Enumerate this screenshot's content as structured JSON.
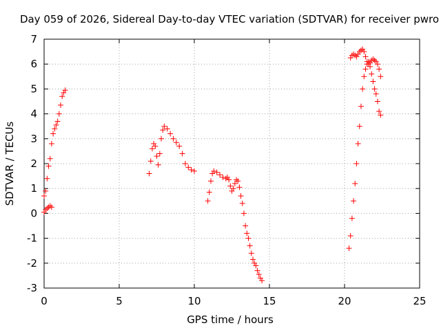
{
  "chart_data": {
    "type": "scatter",
    "title": "Day 059 of 2026, Sidereal Day-to-day VTEC variation (SDTVAR) for receiver pwro",
    "xlabel": "GPS time / hours",
    "ylabel": "SDTVAR / TECUs",
    "xlim": [
      0,
      25
    ],
    "ylim": [
      -3,
      7
    ],
    "xticks": [
      0,
      5,
      10,
      15,
      20,
      25
    ],
    "yticks": [
      -3,
      -2,
      -1,
      0,
      1,
      2,
      3,
      4,
      5,
      6,
      7
    ],
    "grid": true,
    "marker": "+",
    "color": "#ff0000",
    "series": [
      {
        "values": [
          [
            0.0,
            0.05
          ],
          [
            0.1,
            0.15
          ],
          [
            0.2,
            0.2
          ],
          [
            0.3,
            0.25
          ],
          [
            0.4,
            0.3
          ],
          [
            0.5,
            0.25
          ],
          [
            0.0,
            0.7
          ],
          [
            0.1,
            0.9
          ],
          [
            0.2,
            1.4
          ],
          [
            0.3,
            1.9
          ],
          [
            0.4,
            2.2
          ],
          [
            0.5,
            2.8
          ],
          [
            0.6,
            3.2
          ],
          [
            0.7,
            3.4
          ],
          [
            0.8,
            3.55
          ],
          [
            0.9,
            3.7
          ],
          [
            1.0,
            4.0
          ],
          [
            1.1,
            4.35
          ],
          [
            1.2,
            4.7
          ],
          [
            1.3,
            4.85
          ],
          [
            1.4,
            4.95
          ],
          [
            7.0,
            1.6
          ],
          [
            7.1,
            2.1
          ],
          [
            7.2,
            2.6
          ],
          [
            7.3,
            2.8
          ],
          [
            7.4,
            2.7
          ],
          [
            7.5,
            2.3
          ],
          [
            7.6,
            1.95
          ],
          [
            7.7,
            2.4
          ],
          [
            7.8,
            3.0
          ],
          [
            7.9,
            3.35
          ],
          [
            8.0,
            3.5
          ],
          [
            8.2,
            3.4
          ],
          [
            8.4,
            3.2
          ],
          [
            8.6,
            3.0
          ],
          [
            8.8,
            2.85
          ],
          [
            9.0,
            2.7
          ],
          [
            9.2,
            2.4
          ],
          [
            9.4,
            2.0
          ],
          [
            9.6,
            1.85
          ],
          [
            9.8,
            1.75
          ],
          [
            10.0,
            1.7
          ],
          [
            10.9,
            0.5
          ],
          [
            11.0,
            0.85
          ],
          [
            11.1,
            1.3
          ],
          [
            11.2,
            1.6
          ],
          [
            11.3,
            1.7
          ],
          [
            11.5,
            1.65
          ],
          [
            11.7,
            1.55
          ],
          [
            11.9,
            1.45
          ],
          [
            12.1,
            1.4
          ],
          [
            12.2,
            1.45
          ],
          [
            12.3,
            1.35
          ],
          [
            12.4,
            1.1
          ],
          [
            12.5,
            0.9
          ],
          [
            12.6,
            1.0
          ],
          [
            12.7,
            1.2
          ],
          [
            12.8,
            1.35
          ],
          [
            12.9,
            1.3
          ],
          [
            13.0,
            1.05
          ],
          [
            13.1,
            0.7
          ],
          [
            13.2,
            0.4
          ],
          [
            13.3,
            0.0
          ],
          [
            13.4,
            -0.5
          ],
          [
            13.5,
            -0.8
          ],
          [
            13.6,
            -1.0
          ],
          [
            13.7,
            -1.3
          ],
          [
            13.8,
            -1.6
          ],
          [
            13.9,
            -1.85
          ],
          [
            14.0,
            -2.0
          ],
          [
            14.1,
            -2.1
          ],
          [
            14.2,
            -2.3
          ],
          [
            14.3,
            -2.45
          ],
          [
            14.4,
            -2.6
          ],
          [
            14.5,
            -2.7
          ],
          [
            20.3,
            -1.4
          ],
          [
            20.4,
            -0.9
          ],
          [
            20.5,
            -0.2
          ],
          [
            20.6,
            0.5
          ],
          [
            20.7,
            1.2
          ],
          [
            20.8,
            2.0
          ],
          [
            20.9,
            2.8
          ],
          [
            21.0,
            3.5
          ],
          [
            21.1,
            4.3
          ],
          [
            21.2,
            5.0
          ],
          [
            21.3,
            5.5
          ],
          [
            21.4,
            5.8
          ],
          [
            21.5,
            6.0
          ],
          [
            21.6,
            6.1
          ],
          [
            21.7,
            5.9
          ],
          [
            21.8,
            5.6
          ],
          [
            21.9,
            5.3
          ],
          [
            22.0,
            5.0
          ],
          [
            22.1,
            4.8
          ],
          [
            22.2,
            4.5
          ],
          [
            22.3,
            4.1
          ],
          [
            22.4,
            3.95
          ],
          [
            20.4,
            6.25
          ],
          [
            20.5,
            6.35
          ],
          [
            20.6,
            6.4
          ],
          [
            20.7,
            6.35
          ],
          [
            20.8,
            6.3
          ],
          [
            20.9,
            6.4
          ],
          [
            21.0,
            6.5
          ],
          [
            21.1,
            6.55
          ],
          [
            21.2,
            6.6
          ],
          [
            21.3,
            6.5
          ],
          [
            21.4,
            6.3
          ],
          [
            21.5,
            6.1
          ],
          [
            21.6,
            6.0
          ],
          [
            21.7,
            6.05
          ],
          [
            21.8,
            6.15
          ],
          [
            21.9,
            6.2
          ],
          [
            22.0,
            6.15
          ],
          [
            22.1,
            6.1
          ],
          [
            22.2,
            6.0
          ],
          [
            22.3,
            5.8
          ],
          [
            22.4,
            5.5
          ]
        ]
      }
    ]
  }
}
